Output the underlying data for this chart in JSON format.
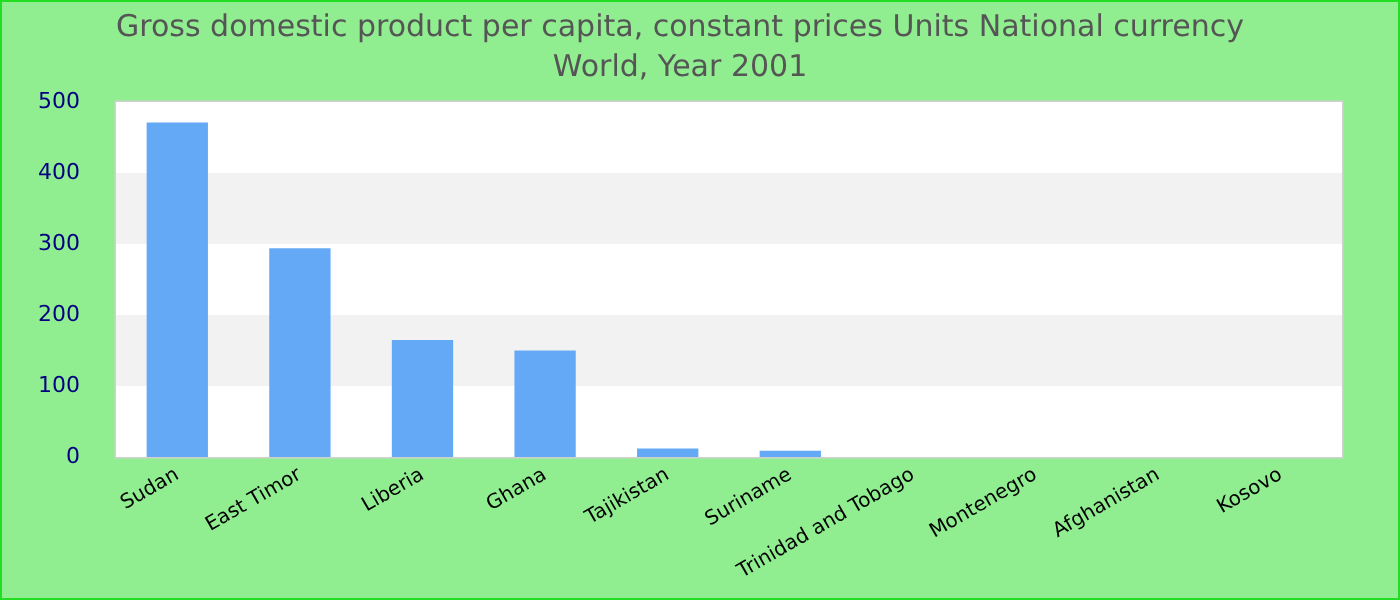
{
  "chart_data": {
    "type": "bar",
    "title": "Gross domestic product per capita, constant prices Units National currency",
    "subtitle": "World, Year 2001",
    "categories": [
      "Sudan",
      "East Timor",
      "Liberia",
      "Ghana",
      "Tajikistan",
      "Suriname",
      "Trinidad and Tobago",
      "Montenegro",
      "Afghanistan",
      "Kosovo"
    ],
    "values": [
      471,
      294,
      165,
      150,
      12,
      9,
      0,
      0,
      0,
      0
    ],
    "color": "#63a9f5",
    "ylim": [
      0,
      500
    ],
    "yticks": [
      0,
      100,
      200,
      300,
      400,
      500
    ],
    "legend": false
  }
}
